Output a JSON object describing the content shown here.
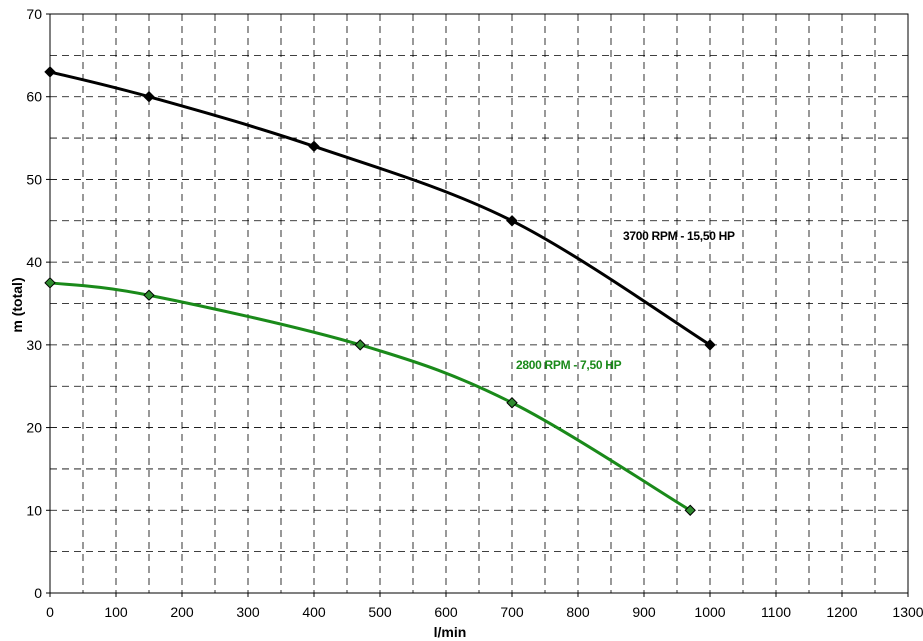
{
  "chart_data": {
    "type": "line",
    "title": "",
    "xlabel": "l/min",
    "ylabel": "m (total)",
    "xlim": [
      0,
      1300
    ],
    "ylim": [
      0,
      70
    ],
    "x_ticks": [
      "0",
      "100",
      "200",
      "300",
      "400",
      "500",
      "600",
      "700",
      "800",
      "900",
      "1000",
      "1100",
      "1200",
      "1300"
    ],
    "y_ticks": [
      "0",
      "10",
      "20",
      "30",
      "40",
      "50",
      "60",
      "70"
    ],
    "grid": true,
    "grid_style": "dashed",
    "series": [
      {
        "name": "3700 RPM - 15,50 HP",
        "color": "#000000",
        "x": [
          0,
          150,
          400,
          700,
          1000
        ],
        "y": [
          63,
          60,
          54,
          45,
          30
        ]
      },
      {
        "name": "2800 RPM - 7,50 HP",
        "color": "#1a8a1a",
        "marker_fill": "#2e8b2e",
        "x": [
          0,
          150,
          470,
          700,
          970
        ],
        "y": [
          37.5,
          36,
          30,
          23,
          10
        ]
      }
    ]
  }
}
